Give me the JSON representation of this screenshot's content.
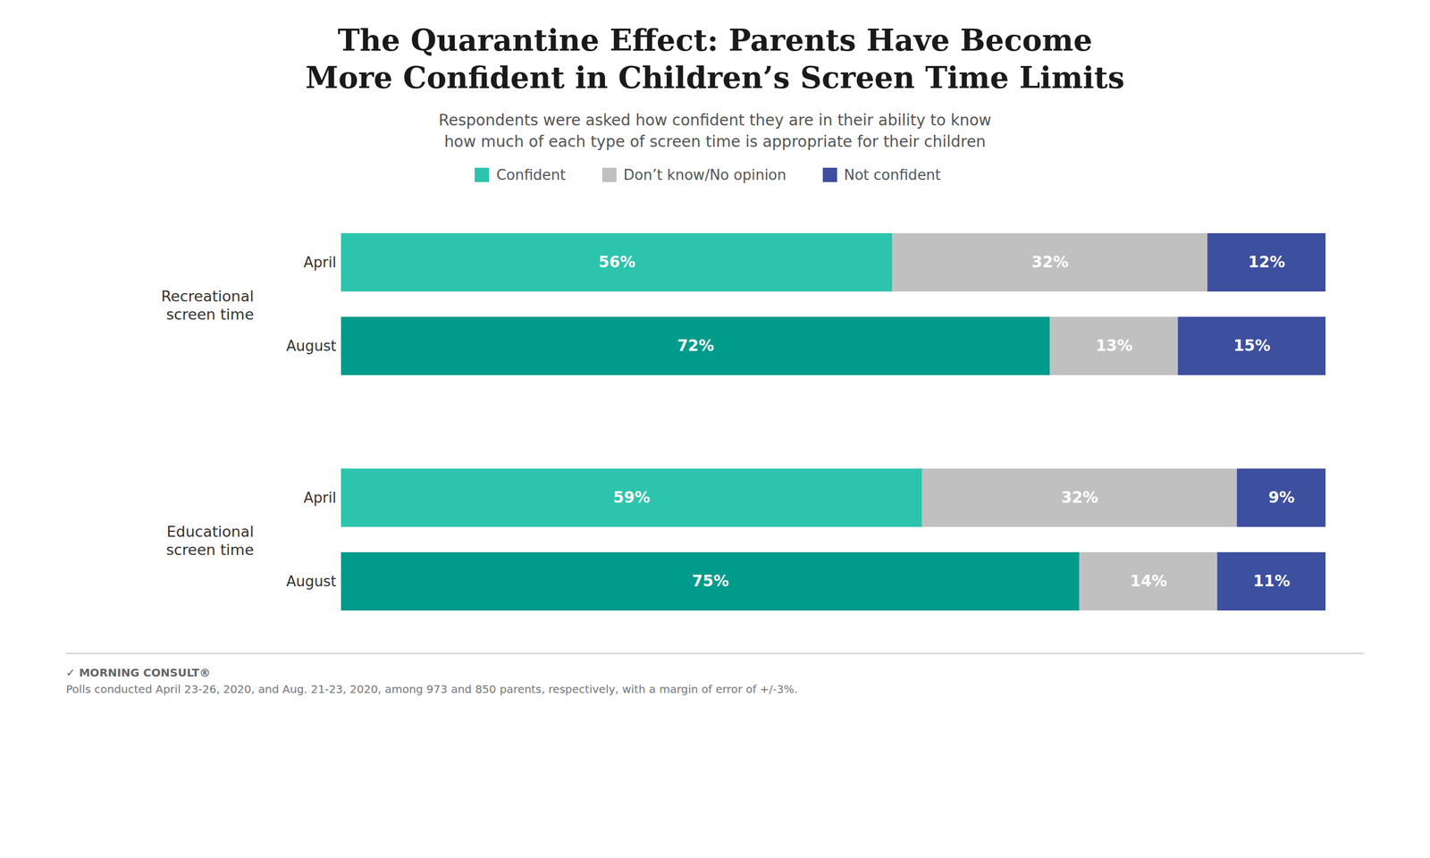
{
  "chart_data": {
    "type": "bar",
    "orientation": "horizontal",
    "stacked": true,
    "data_labels": true,
    "legend": "top",
    "grid": false,
    "tick_labels": "y",
    "title": "The Quarantine Effect: Parents Have Become\nMore Confident in Children’s Screen Time Limits",
    "subtitle": "Respondents were asked how confident they are in their ability to know\nhow much of each type of screen time is appropriate for their children",
    "categories": [
      "April",
      "August",
      "April",
      "August"
    ],
    "groups": [
      "Recreational\nscreen time",
      "Recreational\nscreen time",
      "Educational\nscreen time",
      "Educational\nscreen time"
    ],
    "series": [
      {
        "name": "Confident",
        "color": "#2CC4AD",
        "colors": [
          "#2CC4AD",
          "#009B8A",
          "#2CC4AD",
          "#009B8A"
        ],
        "values": [
          56,
          72,
          59,
          75
        ],
        "value_labels": [
          "56%",
          "72%",
          "59%",
          "75%"
        ]
      },
      {
        "name": "Don’t know/No opinion",
        "color": "#C0C0C0",
        "values": [
          32,
          13,
          32,
          14
        ],
        "value_labels": [
          "32%",
          "13%",
          "32%",
          "14%"
        ]
      },
      {
        "name": "Not confident",
        "color": "#3D4F9F",
        "values": [
          12,
          15,
          9,
          11
        ],
        "value_labels": [
          "12%",
          "15%",
          "9%",
          "11%"
        ]
      }
    ],
    "xlim": [
      0,
      100
    ],
    "annotations": [
      "✓ MORNING CONSULT®",
      "Polls conducted April 23-26, 2020, and Aug. 21-23, 2020, among 973 and 850 parents, respectively, with a margin of error of +/-3%."
    ]
  }
}
